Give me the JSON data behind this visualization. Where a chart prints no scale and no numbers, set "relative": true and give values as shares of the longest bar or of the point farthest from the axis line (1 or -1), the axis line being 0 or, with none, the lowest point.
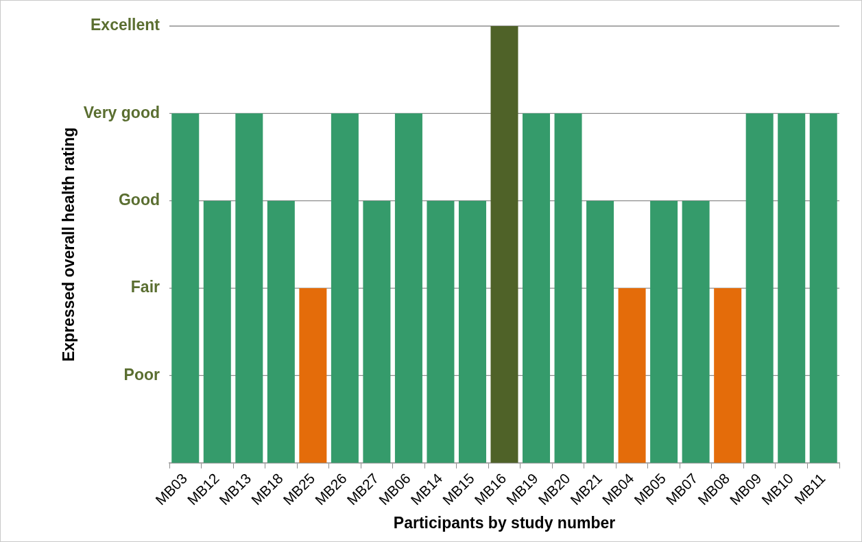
{
  "chart_data": {
    "type": "bar",
    "xlabel": "Participants by study number",
    "ylabel": "Expressed overall health rating",
    "categories": [
      "MB03",
      "MB12",
      "MB13",
      "MB18",
      "MB25",
      "MB26",
      "MB27",
      "MB06",
      "MB14",
      "MB15",
      "MB16",
      "MB19",
      "MB20",
      "MB21",
      "MB04",
      "MB05",
      "MB07",
      "MB08",
      "MB09",
      "MB10",
      "MB11"
    ],
    "values": [
      0.8,
      0.6,
      0.8,
      0.6,
      0.4,
      0.8,
      0.6,
      0.8,
      0.6,
      0.6,
      1,
      0.8,
      0.8,
      0.6,
      0.4,
      0.6,
      0.6,
      0.4,
      0.8,
      0.8,
      0.8
    ],
    "colors": [
      "#359b6b",
      "#359b6b",
      "#359b6b",
      "#359b6b",
      "#e46c0a",
      "#359b6b",
      "#359b6b",
      "#359b6b",
      "#359b6b",
      "#359b6b",
      "#4f6228",
      "#359b6b",
      "#359b6b",
      "#359b6b",
      "#e46c0a",
      "#359b6b",
      "#359b6b",
      "#e46c0a",
      "#359b6b",
      "#359b6b",
      "#359b6b"
    ],
    "relative": true,
    "ref_lines": [
      {
        "axis": "y",
        "value": 0.2,
        "label": "Poor"
      },
      {
        "axis": "y",
        "value": 0.4,
        "label": "Fair"
      },
      {
        "axis": "y",
        "value": 0.6,
        "label": "Good"
      },
      {
        "axis": "y",
        "value": 0.8,
        "label": "Very good"
      },
      {
        "axis": "y",
        "value": 1,
        "label": "Excellent"
      }
    ],
    "legend": false
  }
}
